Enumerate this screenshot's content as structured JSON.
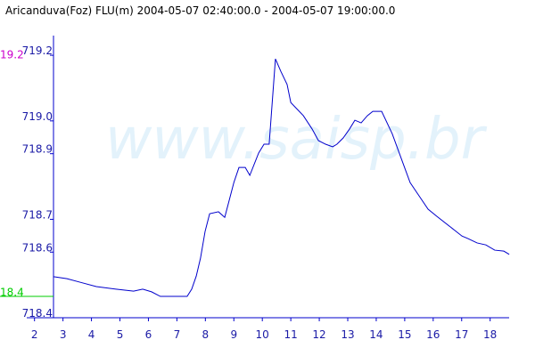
{
  "chart_data": {
    "type": "line",
    "title": "Aricanduva(Foz) FLU(m) 2004-05-07 02:40:00.0 - 2004-05-07 19:00:00.0",
    "watermark": "www.saisp.br",
    "annotations": [
      {
        "text": "19.2",
        "color": "#cc00cc"
      },
      {
        "text": "18.4",
        "color": "#00cc00"
      }
    ],
    "xlim": [
      2.667,
      18.667
    ],
    "xticks": [
      2,
      3,
      4,
      5,
      6,
      7,
      8,
      9,
      10,
      11,
      12,
      13,
      14,
      15,
      16,
      17,
      18
    ],
    "ylim": [
      718.4,
      719.26
    ],
    "yticks": [
      {
        "value": 718.4,
        "label": "718.4"
      },
      {
        "value": 718.6,
        "label": "718.6"
      },
      {
        "value": 718.7,
        "label": "718.7"
      },
      {
        "value": 718.9,
        "label": "718.9"
      },
      {
        "value": 719,
        "label": "719.0"
      },
      {
        "value": 719.2,
        "label": "719.2"
      }
    ],
    "grid": false,
    "x": [
      2.67,
      3.14,
      3.61,
      4.17,
      4.86,
      5.48,
      5.8,
      6.11,
      6.42,
      7.36,
      7.52,
      7.68,
      7.83,
      7.99,
      8.15,
      8.46,
      8.68,
      9.0,
      9.18,
      9.4,
      9.56,
      9.87,
      10.06,
      10.24,
      10.46,
      10.65,
      10.87,
      11.0,
      11.44,
      11.75,
      11.97,
      12.22,
      12.47,
      12.62,
      12.84,
      13.06,
      13.25,
      13.47,
      13.69,
      13.88,
      14.19,
      14.56,
      14.88,
      15.19,
      15.5,
      15.82,
      16.13,
      16.6,
      17.01,
      17.23,
      17.54,
      17.85,
      18.16,
      18.48,
      18.67
    ],
    "series": [
      {
        "color": "#0000cc",
        "values": [
          718.525,
          718.519,
          718.508,
          718.495,
          718.487,
          718.481,
          718.487,
          718.479,
          718.465,
          718.465,
          718.487,
          718.527,
          718.582,
          718.663,
          718.717,
          718.723,
          718.706,
          718.812,
          718.858,
          718.858,
          718.834,
          718.902,
          718.929,
          718.929,
          719.189,
          719.151,
          719.111,
          719.056,
          719.016,
          718.975,
          718.94,
          718.929,
          718.921,
          718.929,
          718.948,
          718.975,
          719.002,
          718.994,
          719.016,
          719.029,
          719.029,
          718.961,
          718.885,
          718.812,
          718.772,
          718.731,
          718.709,
          718.677,
          718.649,
          718.641,
          718.628,
          718.622,
          718.606,
          718.603,
          718.593
        ]
      }
    ]
  }
}
